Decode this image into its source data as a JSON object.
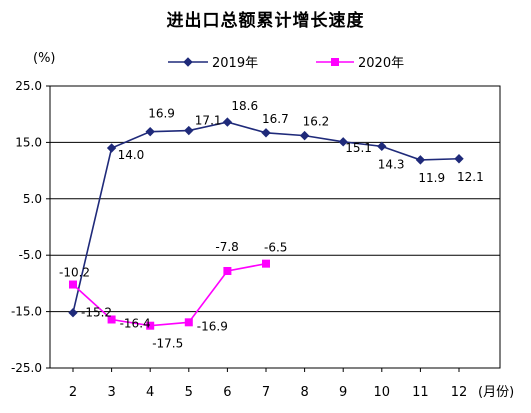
{
  "chart_data": {
    "type": "line",
    "title": "进出口总额累计增长速度",
    "ylabel": "(%)",
    "xlabel": "(月份)",
    "categories": [
      "2",
      "3",
      "4",
      "5",
      "6",
      "7",
      "8",
      "9",
      "10",
      "11",
      "12"
    ],
    "ylim": [
      -25,
      25
    ],
    "yticks": [
      25,
      15,
      5,
      -5,
      -15,
      -25
    ],
    "ytick_labels": [
      "25.0",
      "15.0",
      "5.0",
      "-5.0",
      "-15.0",
      "-25.0"
    ],
    "grid": true,
    "legend_position": "top",
    "series": [
      {
        "name": "2019年",
        "color": "#1f2a7a",
        "marker": "diamond",
        "values": [
          -15.2,
          14.0,
          16.9,
          17.1,
          18.6,
          16.7,
          16.2,
          15.1,
          14.3,
          11.9,
          12.1
        ],
        "labels": [
          "-15.2",
          "14.0",
          "16.9",
          "17.1",
          "18.6",
          "16.7",
          "16.2",
          "15.1",
          "14.3",
          "11.9",
          "12.1"
        ]
      },
      {
        "name": "2020年",
        "color": "#ff00ff",
        "marker": "square",
        "values": [
          -10.2,
          -16.4,
          -17.5,
          -16.9,
          -7.8,
          -6.5,
          null,
          null,
          null,
          null,
          null
        ],
        "labels": [
          "-10.2",
          "-16.4",
          "-17.5",
          "-16.9",
          "-7.8",
          "-6.5",
          "",
          "",
          "",
          "",
          ""
        ]
      }
    ]
  }
}
